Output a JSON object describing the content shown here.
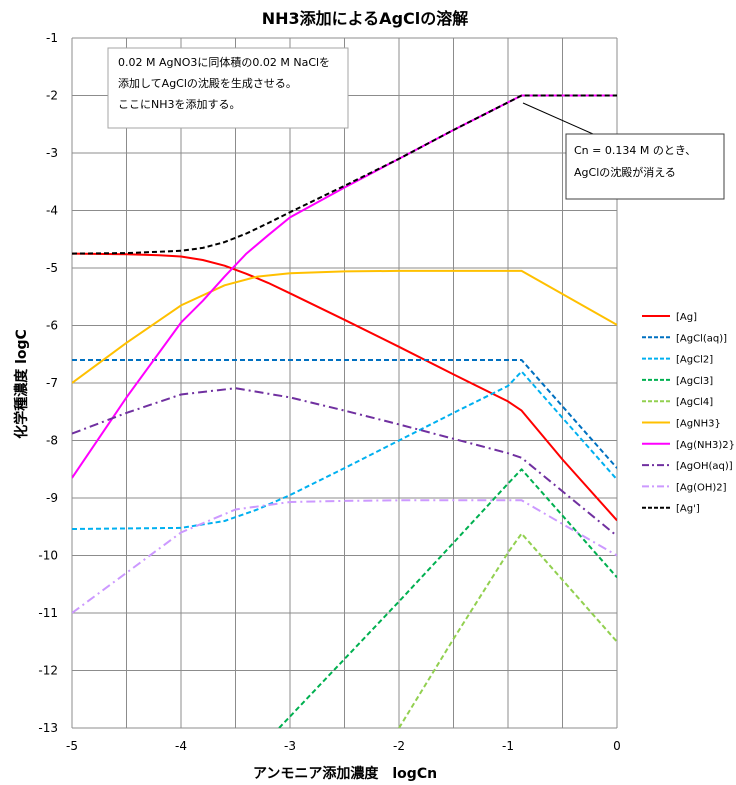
{
  "chart_data": {
    "type": "line",
    "title": "NH3添加によるAgClの溶解",
    "xlabel": "アンモニア添加濃度　logCn",
    "ylabel": "化学種濃度 logC",
    "xlim": [
      -5,
      0
    ],
    "ylim": [
      -13,
      -1
    ],
    "x_ticks": [
      "-5",
      "-4",
      "-3",
      "-2",
      "-1",
      "0"
    ],
    "y_ticks": [
      "-1",
      "-2",
      "-3",
      "-4",
      "-5",
      "-6",
      "-7",
      "-8",
      "-9",
      "-10",
      "-11",
      "-12",
      "-13"
    ],
    "grid": true,
    "legend_position": "right",
    "series": [
      {
        "name": "[Ag]",
        "color": "#ff0000",
        "dash": "solid",
        "x": [
          -5,
          -4.5,
          -4.2,
          -4.0,
          -3.8,
          -3.6,
          -3.4,
          -3.2,
          -3.0,
          -2.5,
          -2.0,
          -1.5,
          -1.0,
          -0.875,
          -0.5,
          0
        ],
        "y": [
          -4.75,
          -4.76,
          -4.78,
          -4.8,
          -4.86,
          -4.96,
          -5.1,
          -5.26,
          -5.44,
          -5.9,
          -6.37,
          -6.85,
          -7.32,
          -7.48,
          -8.33,
          -9.39
        ]
      },
      {
        "name": "[AgCl(aq)]",
        "color": "#0070c0",
        "dash": "dash",
        "x": [
          -5,
          -0.875,
          0
        ],
        "y": [
          -6.6,
          -6.6,
          -8.48
        ]
      },
      {
        "name": "[AgCl2]",
        "color": "#00b0f0",
        "dash": "dash",
        "x": [
          -5,
          -4.0,
          -3.6,
          -3.3,
          -3.0,
          -2.5,
          -2.0,
          -1.5,
          -1.0,
          -0.875,
          0
        ],
        "y": [
          -9.54,
          -9.52,
          -9.4,
          -9.2,
          -8.95,
          -8.48,
          -8.0,
          -7.52,
          -7.05,
          -6.8,
          -8.68
        ]
      },
      {
        "name": "[AgCl3]",
        "color": "#00b050",
        "dash": "dash",
        "x": [
          -3.1,
          -2.5,
          -2.0,
          -1.5,
          -1.0,
          -0.875,
          0
        ],
        "y": [
          -13.0,
          -11.8,
          -10.8,
          -9.78,
          -8.75,
          -8.5,
          -10.38
        ]
      },
      {
        "name": "[AgCl4]",
        "color": "#92d050",
        "dash": "dash",
        "x": [
          -2.0,
          -1.5,
          -1.0,
          -0.875,
          0
        ],
        "y": [
          -13.0,
          -11.45,
          -9.95,
          -9.62,
          -11.5
        ]
      },
      {
        "name": "[AgNH3}",
        "color": "#ffc000",
        "dash": "solid",
        "x": [
          -5,
          -4.5,
          -4.0,
          -3.6,
          -3.3,
          -3.0,
          -2.5,
          -2.0,
          -1.5,
          -0.875,
          0
        ],
        "y": [
          -7.0,
          -6.3,
          -5.65,
          -5.3,
          -5.15,
          -5.09,
          -5.06,
          -5.05,
          -5.05,
          -5.05,
          -5.99
        ]
      },
      {
        "name": "[Ag(NH3)2}",
        "color": "#ff00ff",
        "dash": "solid",
        "x": [
          -5,
          -4.5,
          -4.0,
          -3.8,
          -3.6,
          -3.4,
          -3.2,
          -3.0,
          -2.5,
          -2.0,
          -1.5,
          -1.0,
          -0.875,
          0
        ],
        "y": [
          -8.65,
          -7.25,
          -5.95,
          -5.57,
          -5.15,
          -4.75,
          -4.43,
          -4.12,
          -3.6,
          -3.1,
          -2.6,
          -2.12,
          -2.0,
          -2.0
        ]
      },
      {
        "name": "[AgOH(aq)]",
        "color": "#7030a0",
        "dash": "dashdot",
        "x": [
          -5,
          -4.5,
          -4.0,
          -3.5,
          -3.0,
          -2.5,
          -2.0,
          -1.5,
          -1.0,
          -0.875,
          0
        ],
        "y": [
          -7.88,
          -7.52,
          -7.2,
          -7.09,
          -7.25,
          -7.48,
          -7.72,
          -7.97,
          -8.22,
          -8.3,
          -9.66
        ]
      },
      {
        "name": "[Ag(OH)2]",
        "color": "#cc99ff",
        "dash": "dashdot",
        "x": [
          -5,
          -4.5,
          -4.0,
          -3.5,
          -3.0,
          -2.5,
          -2.0,
          -1.5,
          -0.875,
          0
        ],
        "y": [
          -11.0,
          -10.3,
          -9.6,
          -9.2,
          -9.07,
          -9.05,
          -9.04,
          -9.04,
          -9.04,
          -10.0
        ]
      },
      {
        "name": "[Ag']",
        "color": "#000000",
        "dash": "dash",
        "x": [
          -5,
          -4.5,
          -4.0,
          -3.8,
          -3.6,
          -3.4,
          -3.2,
          -3.0,
          -2.5,
          -2.0,
          -1.5,
          -1.0,
          -0.875,
          0
        ],
        "y": [
          -4.75,
          -4.74,
          -4.7,
          -4.65,
          -4.55,
          -4.4,
          -4.22,
          -4.03,
          -3.57,
          -3.1,
          -2.6,
          -2.12,
          -2.0,
          -2.0
        ]
      }
    ],
    "annotations": [
      {
        "lines": [
          "0.02 M AgNO3に同体積の0.02 M NaClを",
          "添加してAgClの沈殿を生成させる。",
          "ここにNH3を添加する。"
        ]
      },
      {
        "lines": [
          "Cn = 0.134 M のとき、",
          "AgClの沈殿が消える"
        ]
      }
    ]
  }
}
